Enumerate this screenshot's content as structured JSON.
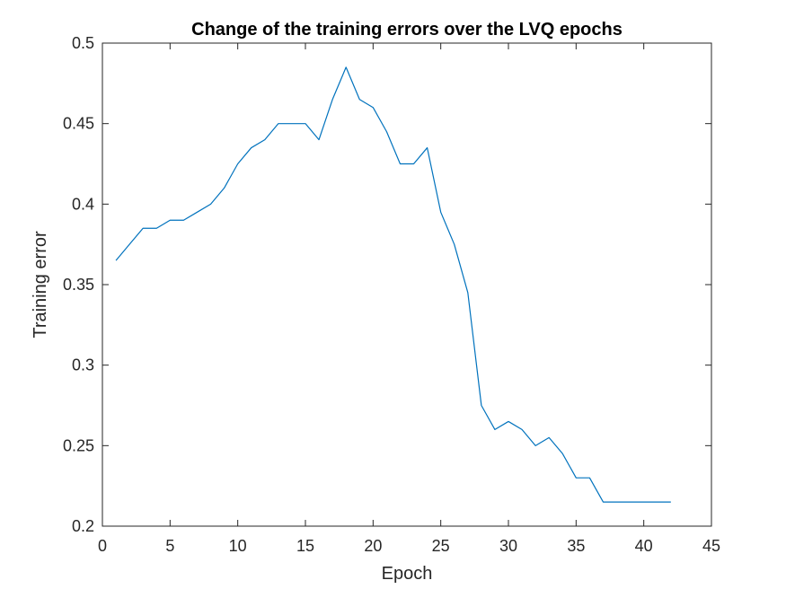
{
  "chart_data": {
    "type": "line",
    "title": "Change of the training errors over the LVQ epochs",
    "xlabel": "Epoch",
    "ylabel": "Training error",
    "xlim": [
      0,
      45
    ],
    "ylim": [
      0.2,
      0.5
    ],
    "xticks": [
      0,
      5,
      10,
      15,
      20,
      25,
      30,
      35,
      40,
      45
    ],
    "yticks": [
      0.2,
      0.25,
      0.3,
      0.35,
      0.4,
      0.45,
      0.5
    ],
    "xtick_labels": [
      "0",
      "5",
      "10",
      "15",
      "20",
      "25",
      "30",
      "35",
      "40",
      "45"
    ],
    "ytick_labels": [
      "0.2",
      "0.25",
      "0.3",
      "0.35",
      "0.4",
      "0.45",
      "0.5"
    ],
    "grid": false,
    "legend": "none",
    "series": [
      {
        "color": "#0072BD",
        "x": [
          1,
          2,
          3,
          4,
          5,
          6,
          7,
          8,
          9,
          10,
          11,
          12,
          13,
          14,
          15,
          16,
          17,
          18,
          19,
          20,
          21,
          22,
          23,
          24,
          25,
          26,
          27,
          28,
          29,
          30,
          31,
          32,
          33,
          34,
          35,
          36,
          37,
          38,
          39,
          40,
          41,
          42
        ],
        "y": [
          0.365,
          0.375,
          0.385,
          0.385,
          0.39,
          0.39,
          0.395,
          0.4,
          0.41,
          0.425,
          0.435,
          0.44,
          0.45,
          0.45,
          0.45,
          0.44,
          0.465,
          0.485,
          0.465,
          0.46,
          0.445,
          0.425,
          0.425,
          0.435,
          0.395,
          0.375,
          0.345,
          0.275,
          0.26,
          0.265,
          0.26,
          0.25,
          0.255,
          0.245,
          0.23,
          0.23,
          0.215,
          0.215,
          0.215,
          0.215,
          0.215,
          0.215
        ]
      }
    ]
  }
}
